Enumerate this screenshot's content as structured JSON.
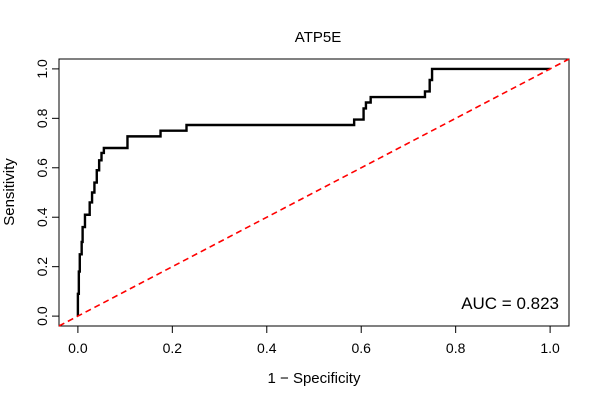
{
  "chart_data": {
    "type": "line",
    "title": "ATP5E",
    "xlabel": "1 − Specificity",
    "ylabel": "Sensitivity",
    "xlim": [
      -0.04,
      1.04
    ],
    "ylim": [
      -0.04,
      1.04
    ],
    "xticks": [
      0.0,
      0.2,
      0.4,
      0.6,
      0.8,
      1.0
    ],
    "yticks": [
      0.0,
      0.2,
      0.4,
      0.6,
      0.8,
      1.0
    ],
    "xtick_labels": [
      "0.0",
      "0.2",
      "0.4",
      "0.6",
      "0.8",
      "1.0"
    ],
    "ytick_labels": [
      "0.0",
      "0.2",
      "0.4",
      "0.6",
      "0.8",
      "1.0"
    ],
    "grid": false,
    "annotation": "AUC = 0.823",
    "series": [
      {
        "color": "#000000",
        "style": "solid-step",
        "points": [
          [
            0.0,
            0.0
          ],
          [
            0.0,
            0.09
          ],
          [
            0.002,
            0.09
          ],
          [
            0.002,
            0.18
          ],
          [
            0.004,
            0.18
          ],
          [
            0.004,
            0.25
          ],
          [
            0.008,
            0.25
          ],
          [
            0.008,
            0.3
          ],
          [
            0.01,
            0.3
          ],
          [
            0.01,
            0.36
          ],
          [
            0.015,
            0.36
          ],
          [
            0.015,
            0.41
          ],
          [
            0.025,
            0.41
          ],
          [
            0.025,
            0.46
          ],
          [
            0.03,
            0.46
          ],
          [
            0.03,
            0.5
          ],
          [
            0.035,
            0.5
          ],
          [
            0.035,
            0.54
          ],
          [
            0.04,
            0.54
          ],
          [
            0.04,
            0.59
          ],
          [
            0.045,
            0.59
          ],
          [
            0.045,
            0.63
          ],
          [
            0.05,
            0.63
          ],
          [
            0.05,
            0.66
          ],
          [
            0.055,
            0.66
          ],
          [
            0.055,
            0.68
          ],
          [
            0.105,
            0.68
          ],
          [
            0.105,
            0.727
          ],
          [
            0.175,
            0.727
          ],
          [
            0.175,
            0.75
          ],
          [
            0.23,
            0.75
          ],
          [
            0.23,
            0.773
          ],
          [
            0.585,
            0.773
          ],
          [
            0.585,
            0.795
          ],
          [
            0.605,
            0.795
          ],
          [
            0.605,
            0.84
          ],
          [
            0.61,
            0.84
          ],
          [
            0.61,
            0.864
          ],
          [
            0.62,
            0.864
          ],
          [
            0.62,
            0.886
          ],
          [
            0.735,
            0.886
          ],
          [
            0.735,
            0.909
          ],
          [
            0.745,
            0.909
          ],
          [
            0.745,
            0.955
          ],
          [
            0.75,
            0.955
          ],
          [
            0.75,
            1.0
          ],
          [
            1.0,
            1.0
          ]
        ]
      },
      {
        "color": "#ff0000",
        "style": "dashed",
        "points": [
          [
            -0.04,
            -0.04
          ],
          [
            1.04,
            1.04
          ]
        ]
      }
    ]
  }
}
